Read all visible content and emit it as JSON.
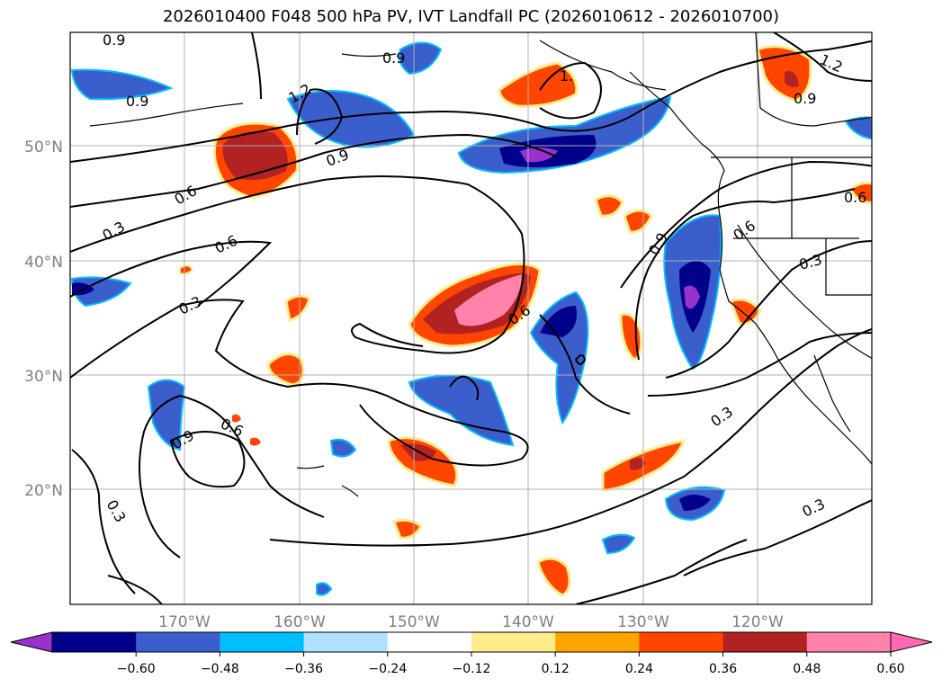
{
  "title": "2026010400 F048 500 hPa PV, IVT Landfall PC (2026010612 - 2026010700)",
  "map": {
    "lat_labels": [
      "50°N",
      "40°N",
      "30°N",
      "20°N"
    ],
    "lon_labels": [
      "170°W",
      "160°W",
      "150°W",
      "140°W",
      "130°W",
      "120°W"
    ],
    "contour_labels": [
      "0.9",
      "0.9",
      "1.2",
      "0.9",
      "0.6",
      "0.3",
      "0.6",
      "0.3",
      "0.6",
      "0.6",
      "0.9",
      "0.3",
      "0.9",
      "0.6",
      "0.9",
      "0.3",
      "0.3",
      "0.3",
      "1.",
      "1.2",
      "0.9",
      "0.6"
    ]
  },
  "colorbar": {
    "ticks": [
      "−0.60",
      "−0.48",
      "−0.36",
      "−0.24",
      "−0.12",
      "0.12",
      "0.24",
      "0.36",
      "0.48",
      "0.60"
    ],
    "colors": [
      "#9932cc",
      "#00008b",
      "#3a5fcd",
      "#00bfff",
      "#b0e2ff",
      "#ffffff",
      "#ffec8b",
      "#ffa500",
      "#ff4500",
      "#b22222",
      "#ff82ab",
      "#ff69b4"
    ]
  }
}
